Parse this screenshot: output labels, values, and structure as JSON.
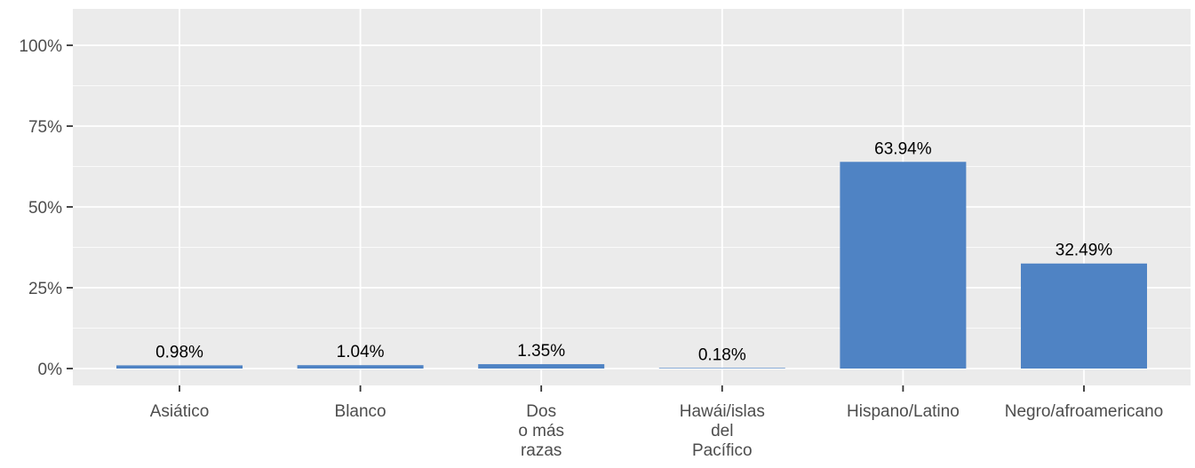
{
  "chart_data": {
    "type": "bar",
    "categories": [
      [
        "Asiático"
      ],
      [
        "Blanco"
      ],
      [
        "Dos",
        "o más",
        "razas"
      ],
      [
        "Hawái/islas",
        "del",
        "Pacífico"
      ],
      [
        "Hispano/Latino"
      ],
      [
        "Negro/afroamericano"
      ]
    ],
    "values": [
      0.98,
      1.04,
      1.35,
      0.18,
      63.94,
      32.49
    ],
    "data_labels": [
      "0.98%",
      "1.04%",
      "1.35%",
      "0.18%",
      "63.94%",
      "32.49%"
    ],
    "title": "",
    "xlabel": "",
    "ylabel": "",
    "ylim": [
      0,
      100
    ],
    "yticks": [
      0,
      25,
      50,
      75,
      100
    ],
    "ytick_labels": [
      "0%",
      "25%",
      "50%",
      "75%",
      "100%"
    ],
    "grid": true,
    "legend": "none",
    "colors": {
      "bar": "#4f83c4",
      "panel": "#ebebeb",
      "grid": "#ffffff",
      "axis_text": "#4d4d4d",
      "label_text": "#000000",
      "tick": "#333333"
    }
  }
}
